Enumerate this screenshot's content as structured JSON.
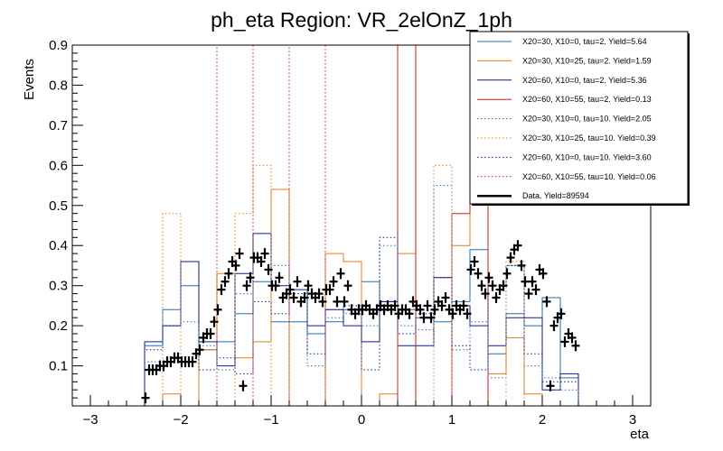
{
  "chart_data": {
    "type": "histogram",
    "title": "ph_eta Region: VR_2elOnZ_1ph",
    "xlabel": "eta",
    "ylabel": "Events",
    "xlim": [
      -3.2,
      3.2
    ],
    "ylim": [
      0,
      0.9
    ],
    "x_ticks": [
      -3,
      -2,
      -1,
      0,
      1,
      2,
      3
    ],
    "x_tick_labels": [
      "−3",
      "−2",
      "−1",
      "0",
      "1",
      "2",
      "3"
    ],
    "y_ticks": [
      0.1,
      0.2,
      0.3,
      0.4,
      0.5,
      0.6,
      0.7,
      0.8,
      0.9
    ],
    "y_tick_labels": [
      "0.1",
      "0.2",
      "0.3",
      "0.4",
      "0.5",
      "0.6",
      "0.7",
      "0.8",
      "0.9"
    ],
    "legend_position": "top-right",
    "bin_edges": [
      -2.4,
      -2.2,
      -2.0,
      -1.8,
      -1.6,
      -1.4,
      -1.2,
      -1.0,
      -0.8,
      -0.6,
      -0.4,
      -0.2,
      0.0,
      0.2,
      0.4,
      0.6,
      0.8,
      1.0,
      1.2,
      1.4,
      1.6,
      1.8,
      2.0,
      2.2,
      2.4
    ],
    "series": [
      {
        "name": "X20=30, X10=0, tau=2. Yield=5.64",
        "color": "#1f6fb4",
        "style": "solid",
        "values": [
          0.15,
          0.24,
          0.3,
          0.14,
          0.16,
          0.23,
          0.31,
          0.21,
          0.21,
          0.18,
          0.21,
          0.24,
          0.31,
          0.26,
          0.24,
          0.22,
          0.21,
          0.26,
          0.39,
          0.13,
          0.23,
          0.2,
          0.27,
          0.07
        ]
      },
      {
        "name": "X20=30, X10=25, tau=2. Yield=1.59",
        "color": "#e07b1e",
        "style": "solid",
        "values": [
          0.0,
          0.03,
          0.0,
          0.14,
          0.33,
          0.12,
          0.16,
          0.54,
          0.0,
          0.0,
          0.38,
          0.36,
          0.0,
          0.03,
          0.38,
          0.0,
          0.0,
          0.4,
          0.68,
          0.08,
          0.17,
          0.03,
          0.0,
          0.0
        ]
      },
      {
        "name": "X20=60, X10=0, tau=2. Yield=5.36",
        "color": "#0d1a8a",
        "style": "solid",
        "values": [
          0.16,
          0.2,
          0.36,
          0.16,
          0.1,
          0.33,
          0.43,
          0.3,
          0.29,
          0.2,
          0.24,
          0.2,
          0.16,
          0.26,
          0.15,
          0.15,
          0.32,
          0.25,
          0.2,
          0.15,
          0.22,
          0.22,
          0.04,
          0.08
        ]
      },
      {
        "name": "X20=60, X10=55, tau=2. Yield=0.13",
        "color": "#cc1d1d",
        "style": "solid",
        "values": [
          0.0,
          0.0,
          0.0,
          0.0,
          0.0,
          0.0,
          0.0,
          0.0,
          0.0,
          0.0,
          0.0,
          0.0,
          0.0,
          0.0,
          0.9,
          0.0,
          0.0,
          0.48,
          0.9,
          0.0,
          0.0,
          0.0,
          0.0,
          0.0
        ]
      },
      {
        "name": "X20=30, X10=0, tau=10. Yield=2.05",
        "color": "#1f6fb4",
        "style": "dotted",
        "values": [
          0.11,
          0.2,
          0.21,
          0.15,
          0.09,
          0.28,
          0.38,
          0.35,
          0.29,
          0.1,
          0.22,
          0.23,
          0.2,
          0.4,
          0.2,
          0.19,
          0.55,
          0.14,
          0.21,
          0.07,
          0.35,
          0.1,
          0.07,
          0.04
        ]
      },
      {
        "name": "X20=30, X10=25, tau=10. Yield=0.39",
        "color": "#e07b1e",
        "style": "dotted",
        "values": [
          0.0,
          0.48,
          0.0,
          0.0,
          0.0,
          0.48,
          0.6,
          0.0,
          0.0,
          0.0,
          0.0,
          0.0,
          0.0,
          0.0,
          0.0,
          0.0,
          0.6,
          0.0,
          0.0,
          0.0,
          0.36,
          0.0,
          0.0,
          0.0
        ]
      },
      {
        "name": "X20=60, X10=0, tau=10. Yield=3.60",
        "color": "#0d1a8a",
        "style": "dotted",
        "values": [
          0.14,
          0.2,
          0.36,
          0.09,
          0.12,
          0.08,
          0.26,
          0.23,
          0.28,
          0.13,
          0.24,
          0.25,
          0.09,
          0.42,
          0.18,
          0.23,
          0.32,
          0.15,
          0.09,
          0.3,
          0.35,
          0.13,
          0.06,
          0.06
        ]
      },
      {
        "name": "X20=60, X10=55, tau=10. Yield=0.06",
        "color": "#cc1d1d",
        "style": "dotted",
        "values": [
          0.0,
          0.0,
          0.0,
          0.0,
          0.9,
          0.9,
          0.0,
          0.0,
          0.9,
          0.9,
          0.0,
          0.0,
          0.0,
          0.0,
          0.0,
          0.0,
          0.0,
          0.0,
          0.0,
          0.0,
          0.0,
          0.0,
          0.0,
          0.0
        ]
      }
    ],
    "data_series": {
      "name": "Data. Yield=89594",
      "color": "#000000",
      "x": [
        -2.39,
        -2.35,
        -2.31,
        -2.27,
        -2.23,
        -2.19,
        -2.15,
        -2.11,
        -2.07,
        -2.03,
        -1.99,
        -1.95,
        -1.91,
        -1.87,
        -1.83,
        -1.79,
        -1.75,
        -1.71,
        -1.67,
        -1.63,
        -1.59,
        -1.55,
        -1.51,
        -1.47,
        -1.43,
        -1.39,
        -1.35,
        -1.31,
        -1.27,
        -1.23,
        -1.19,
        -1.15,
        -1.11,
        -1.07,
        -1.03,
        -0.99,
        -0.95,
        -0.91,
        -0.87,
        -0.83,
        -0.79,
        -0.75,
        -0.71,
        -0.67,
        -0.63,
        -0.59,
        -0.55,
        -0.51,
        -0.47,
        -0.43,
        -0.39,
        -0.35,
        -0.31,
        -0.27,
        -0.23,
        -0.19,
        -0.15,
        -0.11,
        -0.07,
        -0.03,
        0.01,
        0.05,
        0.09,
        0.13,
        0.17,
        0.21,
        0.25,
        0.29,
        0.33,
        0.37,
        0.41,
        0.45,
        0.49,
        0.53,
        0.57,
        0.61,
        0.65,
        0.69,
        0.73,
        0.77,
        0.81,
        0.85,
        0.89,
        0.93,
        0.97,
        1.01,
        1.05,
        1.09,
        1.13,
        1.17,
        1.21,
        1.25,
        1.29,
        1.33,
        1.37,
        1.41,
        1.45,
        1.49,
        1.53,
        1.57,
        1.61,
        1.65,
        1.69,
        1.73,
        1.77,
        1.81,
        1.85,
        1.89,
        1.93,
        1.97,
        2.01,
        2.05,
        2.09,
        2.13,
        2.17,
        2.21,
        2.25,
        2.29,
        2.33,
        2.37
      ],
      "y": [
        0.02,
        0.09,
        0.09,
        0.09,
        0.1,
        0.1,
        0.11,
        0.11,
        0.12,
        0.12,
        0.11,
        0.11,
        0.11,
        0.11,
        0.13,
        0.14,
        0.17,
        0.18,
        0.18,
        0.21,
        0.24,
        0.29,
        0.31,
        0.33,
        0.36,
        0.35,
        0.38,
        0.05,
        0.3,
        0.32,
        0.37,
        0.37,
        0.36,
        0.38,
        0.34,
        0.3,
        0.3,
        0.32,
        0.27,
        0.28,
        0.29,
        0.27,
        0.31,
        0.26,
        0.27,
        0.3,
        0.28,
        0.27,
        0.28,
        0.26,
        0.29,
        0.29,
        0.31,
        0.26,
        0.33,
        0.26,
        0.3,
        0.24,
        0.23,
        0.24,
        0.24,
        0.25,
        0.24,
        0.23,
        0.24,
        0.25,
        0.24,
        0.25,
        0.24,
        0.25,
        0.23,
        0.24,
        0.24,
        0.23,
        0.26,
        0.25,
        0.24,
        0.22,
        0.25,
        0.22,
        0.24,
        0.26,
        0.25,
        0.27,
        0.24,
        0.23,
        0.25,
        0.24,
        0.25,
        0.23,
        0.34,
        0.36,
        0.33,
        0.3,
        0.28,
        0.32,
        0.3,
        0.27,
        0.29,
        0.3,
        0.33,
        0.37,
        0.39,
        0.4,
        0.35,
        0.31,
        0.28,
        0.31,
        0.29,
        0.34,
        0.33,
        0.26,
        0.05,
        0.2,
        0.22,
        0.23,
        0.16,
        0.18,
        0.17,
        0.15
      ]
    }
  }
}
